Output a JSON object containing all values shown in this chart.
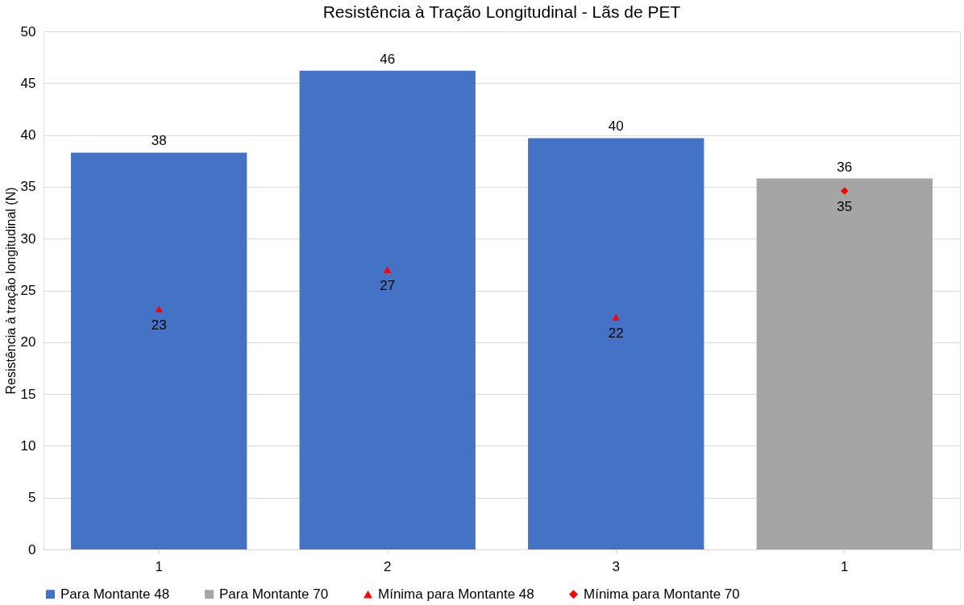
{
  "chart_data": {
    "type": "bar",
    "title": "Resistência à Tração Longitudinal - Lãs de PET",
    "ylabel": "Resistência à tração longitudinal  (N)",
    "categories": [
      "1",
      "2",
      "3",
      "1"
    ],
    "series": [
      {
        "name": "Para Montante 48",
        "color": "#4472c4",
        "values": [
          38.3,
          46.2,
          39.7,
          null
        ],
        "value_labels": [
          "38",
          "46",
          "40",
          null
        ]
      },
      {
        "name": "Para Montante 70",
        "color": "#a5a5a5",
        "values": [
          null,
          null,
          null,
          35.8
        ],
        "value_labels": [
          null,
          null,
          null,
          "36"
        ]
      },
      {
        "name": "Mínima para Montante 48",
        "type": "scatter",
        "marker": "triangle",
        "color": "#ff0000",
        "values": [
          23.2,
          27.0,
          22.4,
          null
        ],
        "value_labels": [
          "23",
          "27",
          "22",
          null
        ]
      },
      {
        "name": "Mínima para Montante 70",
        "type": "scatter",
        "marker": "diamond",
        "color": "#ff0000",
        "values": [
          null,
          null,
          null,
          34.6
        ],
        "value_labels": [
          null,
          null,
          null,
          "35"
        ]
      }
    ],
    "ylim": [
      0,
      50
    ],
    "yticks": [
      0,
      5,
      10,
      15,
      20,
      25,
      30,
      35,
      40,
      45,
      50
    ],
    "grid": "y",
    "legend": "bottom"
  }
}
